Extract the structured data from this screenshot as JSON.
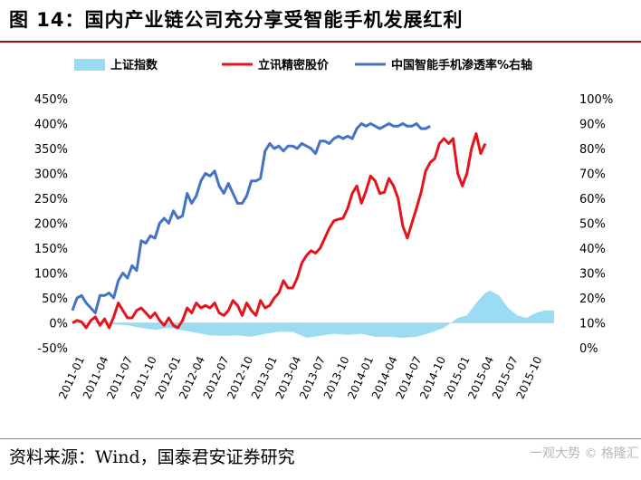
{
  "header": {
    "title": "图 14：国内产业链公司充分享受智能手机发展红利"
  },
  "footer": {
    "source": "资料来源：Wind，国泰君安证券研究",
    "watermark": "一观大势 © 格隆汇"
  },
  "colors": {
    "index": "#9bdcf2",
    "lixun": "#e3151a",
    "penetration": "#4472c4",
    "accent": "#a01010"
  },
  "chart_data": {
    "type": "line",
    "legend_position": "top",
    "x_ticks": [
      "2011-01",
      "2011-04",
      "2011-07",
      "2011-10",
      "2012-01",
      "2012-04",
      "2012-07",
      "2012-10",
      "2013-01",
      "2013-04",
      "2013-07",
      "2013-10",
      "2014-01",
      "2014-04",
      "2014-07",
      "2014-10",
      "2015-01",
      "2015-04",
      "2015-07",
      "2015-10"
    ],
    "left_axis": {
      "min": -50,
      "max": 450,
      "ticks": [
        "-50%",
        "0%",
        "50%",
        "100%",
        "150%",
        "200%",
        "250%",
        "300%",
        "350%",
        "400%",
        "450%"
      ]
    },
    "right_axis": {
      "min": 0,
      "max": 100,
      "ticks": [
        "0%",
        "10%",
        "20%",
        "30%",
        "40%",
        "50%",
        "60%",
        "70%",
        "80%",
        "90%",
        "100%"
      ]
    },
    "series": [
      {
        "name": "上证指数",
        "type": "area",
        "axis": "left",
        "points": [
          [
            0,
            0
          ],
          [
            3,
            -2
          ],
          [
            6,
            2
          ],
          [
            9,
            -3
          ],
          [
            12,
            -5
          ],
          [
            15,
            -10
          ],
          [
            18,
            -14
          ],
          [
            21,
            -10
          ],
          [
            24,
            -15
          ],
          [
            27,
            -20
          ],
          [
            30,
            -25
          ],
          [
            33,
            -26
          ],
          [
            36,
            -25
          ],
          [
            39,
            -28
          ],
          [
            42,
            -22
          ],
          [
            45,
            -18
          ],
          [
            48,
            -18
          ],
          [
            51,
            -30
          ],
          [
            54,
            -26
          ],
          [
            57,
            -22
          ],
          [
            60,
            -24
          ],
          [
            63,
            -22
          ],
          [
            66,
            -28
          ],
          [
            69,
            -28
          ],
          [
            72,
            -30
          ],
          [
            75,
            -28
          ],
          [
            78,
            -20
          ],
          [
            81,
            -10
          ],
          [
            84,
            10
          ],
          [
            86,
            15
          ],
          [
            88,
            40
          ],
          [
            90,
            60
          ],
          [
            91,
            65
          ],
          [
            93,
            55
          ],
          [
            95,
            30
          ],
          [
            97,
            15
          ],
          [
            99,
            10
          ],
          [
            101,
            20
          ],
          [
            103,
            25
          ],
          [
            105,
            25
          ]
        ]
      },
      {
        "name": "立讯精密股价",
        "type": "line",
        "axis": "left",
        "points": [
          [
            0,
            0
          ],
          [
            1,
            5
          ],
          [
            2,
            2
          ],
          [
            3,
            -10
          ],
          [
            4,
            5
          ],
          [
            5,
            12
          ],
          [
            6,
            -5
          ],
          [
            7,
            8
          ],
          [
            8,
            -10
          ],
          [
            9,
            12
          ],
          [
            10,
            40
          ],
          [
            11,
            25
          ],
          [
            12,
            10
          ],
          [
            13,
            10
          ],
          [
            14,
            25
          ],
          [
            15,
            30
          ],
          [
            16,
            20
          ],
          [
            17,
            10
          ],
          [
            18,
            20
          ],
          [
            19,
            5
          ],
          [
            20,
            -5
          ],
          [
            21,
            10
          ],
          [
            22,
            -5
          ],
          [
            23,
            -10
          ],
          [
            24,
            5
          ],
          [
            25,
            30
          ],
          [
            26,
            20
          ],
          [
            27,
            40
          ],
          [
            28,
            30
          ],
          [
            29,
            35
          ],
          [
            30,
            30
          ],
          [
            31,
            40
          ],
          [
            32,
            20
          ],
          [
            33,
            15
          ],
          [
            34,
            25
          ],
          [
            35,
            45
          ],
          [
            36,
            35
          ],
          [
            37,
            15
          ],
          [
            38,
            40
          ],
          [
            39,
            25
          ],
          [
            40,
            15
          ],
          [
            41,
            45
          ],
          [
            42,
            30
          ],
          [
            43,
            35
          ],
          [
            44,
            50
          ],
          [
            45,
            60
          ],
          [
            46,
            85
          ],
          [
            47,
            70
          ],
          [
            48,
            70
          ],
          [
            49,
            90
          ],
          [
            50,
            120
          ],
          [
            51,
            135
          ],
          [
            52,
            145
          ],
          [
            53,
            140
          ],
          [
            54,
            150
          ],
          [
            55,
            170
          ],
          [
            56,
            190
          ],
          [
            57,
            205
          ],
          [
            58,
            208
          ],
          [
            59,
            210
          ],
          [
            60,
            230
          ],
          [
            61,
            260
          ],
          [
            62,
            275
          ],
          [
            63,
            240
          ],
          [
            64,
            265
          ],
          [
            65,
            295
          ],
          [
            66,
            285
          ],
          [
            67,
            260
          ],
          [
            68,
            262
          ],
          [
            69,
            290
          ],
          [
            70,
            275
          ],
          [
            71,
            250
          ],
          [
            72,
            195
          ],
          [
            73,
            170
          ],
          [
            74,
            200
          ],
          [
            75,
            230
          ],
          [
            76,
            262
          ],
          [
            77,
            305
          ],
          [
            78,
            322
          ],
          [
            79,
            330
          ],
          [
            80,
            360
          ],
          [
            81,
            370
          ],
          [
            82,
            360
          ],
          [
            83,
            370
          ],
          [
            84,
            300
          ],
          [
            85,
            275
          ],
          [
            86,
            300
          ],
          [
            87,
            350
          ],
          [
            88,
            380
          ],
          [
            89,
            340
          ],
          [
            90,
            360
          ]
        ]
      },
      {
        "name": "中国智能手机渗透率%右轴",
        "type": "line",
        "axis": "right",
        "points": [
          [
            0,
            15
          ],
          [
            1,
            20
          ],
          [
            2,
            21
          ],
          [
            3,
            18
          ],
          [
            4,
            16
          ],
          [
            5,
            14
          ],
          [
            6,
            21
          ],
          [
            7,
            21
          ],
          [
            8,
            22
          ],
          [
            9,
            20
          ],
          [
            10,
            27
          ],
          [
            11,
            30
          ],
          [
            12,
            28
          ],
          [
            13,
            33
          ],
          [
            14,
            31
          ],
          [
            15,
            43
          ],
          [
            16,
            42
          ],
          [
            17,
            45
          ],
          [
            18,
            44
          ],
          [
            19,
            50
          ],
          [
            20,
            52
          ],
          [
            21,
            50
          ],
          [
            22,
            55
          ],
          [
            23,
            52
          ],
          [
            24,
            53
          ],
          [
            25,
            62
          ],
          [
            26,
            58
          ],
          [
            27,
            61
          ],
          [
            28,
            67
          ],
          [
            29,
            70
          ],
          [
            30,
            69
          ],
          [
            31,
            71
          ],
          [
            32,
            65
          ],
          [
            33,
            62
          ],
          [
            34,
            66
          ],
          [
            35,
            62
          ],
          [
            36,
            58
          ],
          [
            37,
            58
          ],
          [
            38,
            61
          ],
          [
            39,
            67
          ],
          [
            40,
            67
          ],
          [
            41,
            68
          ],
          [
            42,
            79
          ],
          [
            43,
            82
          ],
          [
            44,
            80
          ],
          [
            45,
            81
          ],
          [
            46,
            79
          ],
          [
            47,
            81
          ],
          [
            48,
            81
          ],
          [
            49,
            80
          ],
          [
            50,
            82
          ],
          [
            51,
            81
          ],
          [
            52,
            80
          ],
          [
            53,
            78
          ],
          [
            54,
            83
          ],
          [
            55,
            83
          ],
          [
            56,
            82
          ],
          [
            57,
            84
          ],
          [
            58,
            85
          ],
          [
            59,
            84
          ],
          [
            60,
            85
          ],
          [
            61,
            84
          ],
          [
            62,
            88
          ],
          [
            63,
            90
          ],
          [
            64,
            89
          ],
          [
            65,
            90
          ],
          [
            66,
            89
          ],
          [
            67,
            88
          ],
          [
            68,
            89
          ],
          [
            69,
            90
          ],
          [
            70,
            89
          ],
          [
            71,
            89
          ],
          [
            72,
            90
          ],
          [
            73,
            89
          ],
          [
            74,
            89
          ],
          [
            75,
            90
          ],
          [
            76,
            88
          ],
          [
            77,
            88
          ],
          [
            78,
            89
          ]
        ]
      }
    ]
  }
}
